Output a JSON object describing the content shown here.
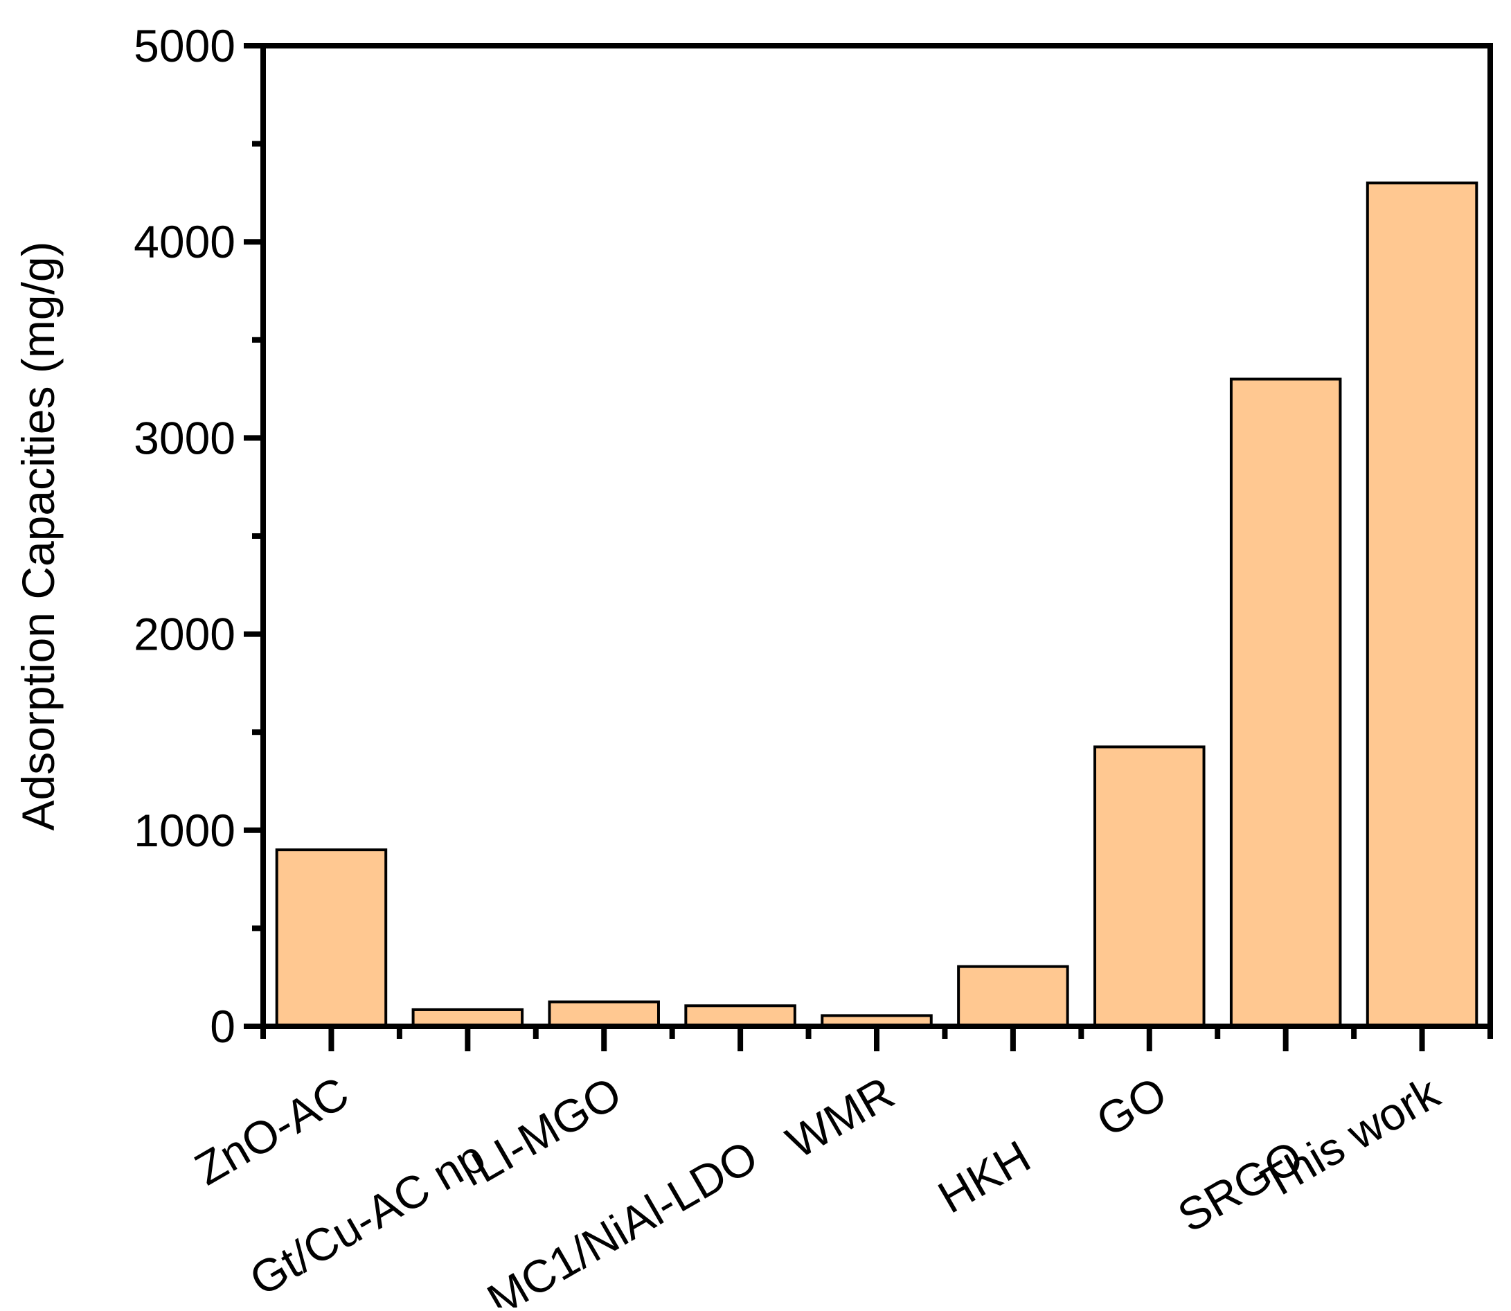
{
  "chart_data": {
    "type": "bar",
    "title": "",
    "xlabel": "",
    "ylabel": "Adsorption Capacities (mg/g)",
    "categories": [
      "ZnO-AC",
      "Gt/Cu-AC np",
      "LI-MGO",
      "MC1/NiAl-LDO",
      "WMR",
      "HKH",
      "GO",
      "SRGO",
      "This work"
    ],
    "values": [
      900,
      85,
      125,
      105,
      55,
      305,
      1425,
      3300,
      4300
    ],
    "ylim": [
      0,
      5000
    ],
    "yticks": [
      0,
      1000,
      2000,
      3000,
      4000,
      5000
    ],
    "grid": false,
    "legend": "none",
    "colors": {
      "bar_fill": "#FFC891",
      "bar_stroke": "#000000",
      "axis": "#000000"
    }
  }
}
